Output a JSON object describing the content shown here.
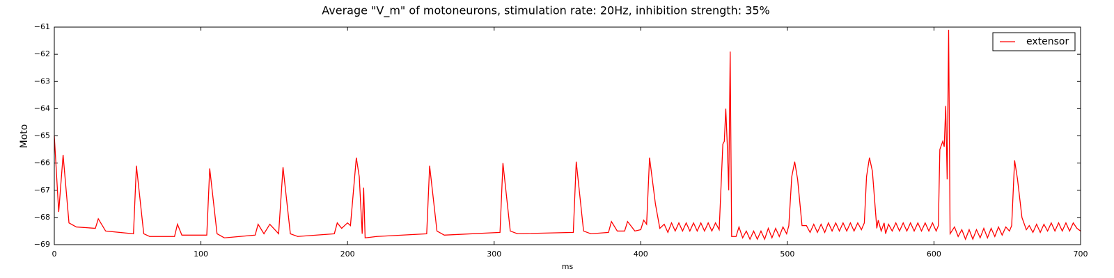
{
  "chart_data": {
    "type": "line",
    "title": "Average \"V_m\" of motoneurons, stimulation rate: 20Hz, inhibition strength: 35%",
    "x_label": "ms",
    "y_label": "Moto",
    "xlim": [
      0,
      700
    ],
    "xticks": [
      0,
      100,
      200,
      300,
      400,
      500,
      600,
      700
    ],
    "ylim": [
      -69,
      -61
    ],
    "yticks": [
      {
        "value": -69,
        "label": "−69"
      },
      {
        "value": -68,
        "label": "−68"
      },
      {
        "value": -67,
        "label": "−67"
      },
      {
        "value": -66,
        "label": "−66"
      },
      {
        "value": -65,
        "label": "−65"
      },
      {
        "value": -64,
        "label": "−64"
      },
      {
        "value": -63,
        "label": "−63"
      },
      {
        "value": -62,
        "label": "−62"
      },
      {
        "value": -61,
        "label": "−61"
      }
    ],
    "legend": "upper right",
    "series": [
      {
        "name": "extensor",
        "color": "#ff0000",
        "x": [
          0,
          3,
          6,
          10,
          15,
          28,
          30,
          35,
          54,
          56,
          61,
          65,
          82,
          84,
          87,
          104,
          106,
          111,
          116,
          137,
          139,
          143,
          147,
          153,
          156,
          161,
          166,
          191,
          193,
          196,
          200,
          202,
          206,
          208,
          210,
          211,
          212,
          220,
          254,
          256,
          261,
          266,
          304,
          306,
          311,
          316,
          354,
          356,
          361,
          366,
          378,
          380,
          384,
          389,
          391,
          396,
          400,
          402,
          404,
          406,
          410,
          413,
          416,
          418.5,
          421,
          423.5,
          426,
          428.5,
          431,
          433.5,
          436,
          438.5,
          441,
          443.5,
          446,
          448.5,
          451,
          453.5,
          456,
          457,
          458,
          459,
          460,
          461,
          462,
          465,
          467,
          469.5,
          472,
          474.5,
          477,
          479.5,
          482,
          484.5,
          487,
          489.5,
          492,
          494.5,
          497,
          499.5,
          501,
          503,
          505,
          507,
          510,
          513,
          515.5,
          518,
          520.5,
          523,
          525.5,
          528,
          530.5,
          533,
          535.5,
          538,
          540.5,
          543,
          545.5,
          548,
          550.5,
          552.5,
          554,
          556,
          558,
          561,
          562,
          564,
          566,
          567,
          569,
          571.5,
          574,
          576.5,
          579,
          581.5,
          584,
          586.5,
          589,
          591.5,
          594,
          596.5,
          599,
          601.5,
          603,
          604,
          606,
          607,
          608,
          609,
          610,
          611,
          614,
          616.5,
          619,
          621.5,
          624,
          626.5,
          629,
          631.5,
          634,
          636.5,
          639,
          641.5,
          644,
          646.5,
          649,
          651.5,
          653,
          655,
          657,
          660,
          663,
          665,
          667.5,
          670,
          672.5,
          675,
          677.5,
          680,
          682.5,
          685,
          687.5,
          690,
          692.5,
          695,
          697.5,
          700
        ],
        "values": [
          -65.0,
          -67.8,
          -65.7,
          -68.2,
          -68.35,
          -68.4,
          -68.05,
          -68.5,
          -68.6,
          -66.1,
          -68.6,
          -68.7,
          -68.7,
          -68.25,
          -68.65,
          -68.65,
          -66.2,
          -68.6,
          -68.75,
          -68.65,
          -68.25,
          -68.6,
          -68.25,
          -68.6,
          -66.15,
          -68.6,
          -68.7,
          -68.6,
          -68.2,
          -68.4,
          -68.2,
          -68.3,
          -65.8,
          -66.5,
          -68.6,
          -66.9,
          -68.75,
          -68.7,
          -68.6,
          -66.1,
          -68.5,
          -68.65,
          -68.55,
          -66.0,
          -68.5,
          -68.6,
          -68.55,
          -65.95,
          -68.5,
          -68.6,
          -68.55,
          -68.15,
          -68.5,
          -68.5,
          -68.15,
          -68.5,
          -68.45,
          -68.1,
          -68.25,
          -65.8,
          -67.5,
          -68.4,
          -68.25,
          -68.55,
          -68.2,
          -68.5,
          -68.2,
          -68.5,
          -68.2,
          -68.5,
          -68.2,
          -68.5,
          -68.2,
          -68.5,
          -68.2,
          -68.5,
          -68.2,
          -68.45,
          -65.3,
          -65.2,
          -64.0,
          -65.3,
          -67.0,
          -61.9,
          -68.7,
          -68.7,
          -68.35,
          -68.75,
          -68.5,
          -68.8,
          -68.5,
          -68.8,
          -68.5,
          -68.8,
          -68.4,
          -68.75,
          -68.4,
          -68.7,
          -68.35,
          -68.6,
          -68.3,
          -66.5,
          -65.95,
          -66.6,
          -68.3,
          -68.3,
          -68.55,
          -68.25,
          -68.55,
          -68.25,
          -68.55,
          -68.2,
          -68.5,
          -68.2,
          -68.5,
          -68.2,
          -68.5,
          -68.2,
          -68.5,
          -68.2,
          -68.45,
          -68.2,
          -66.5,
          -65.8,
          -66.3,
          -68.4,
          -68.1,
          -68.5,
          -68.2,
          -68.6,
          -68.25,
          -68.5,
          -68.2,
          -68.5,
          -68.2,
          -68.5,
          -68.2,
          -68.5,
          -68.2,
          -68.5,
          -68.2,
          -68.5,
          -68.2,
          -68.5,
          -68.3,
          -65.5,
          -65.2,
          -65.4,
          -63.9,
          -66.6,
          -61.1,
          -68.6,
          -68.35,
          -68.7,
          -68.45,
          -68.8,
          -68.45,
          -68.8,
          -68.45,
          -68.75,
          -68.4,
          -68.75,
          -68.4,
          -68.7,
          -68.35,
          -68.65,
          -68.35,
          -68.5,
          -68.3,
          -65.9,
          -66.6,
          -68.0,
          -68.45,
          -68.3,
          -68.55,
          -68.25,
          -68.55,
          -68.25,
          -68.5,
          -68.2,
          -68.5,
          -68.2,
          -68.5,
          -68.2,
          -68.5,
          -68.2,
          -68.4,
          -68.5
        ]
      }
    ]
  }
}
